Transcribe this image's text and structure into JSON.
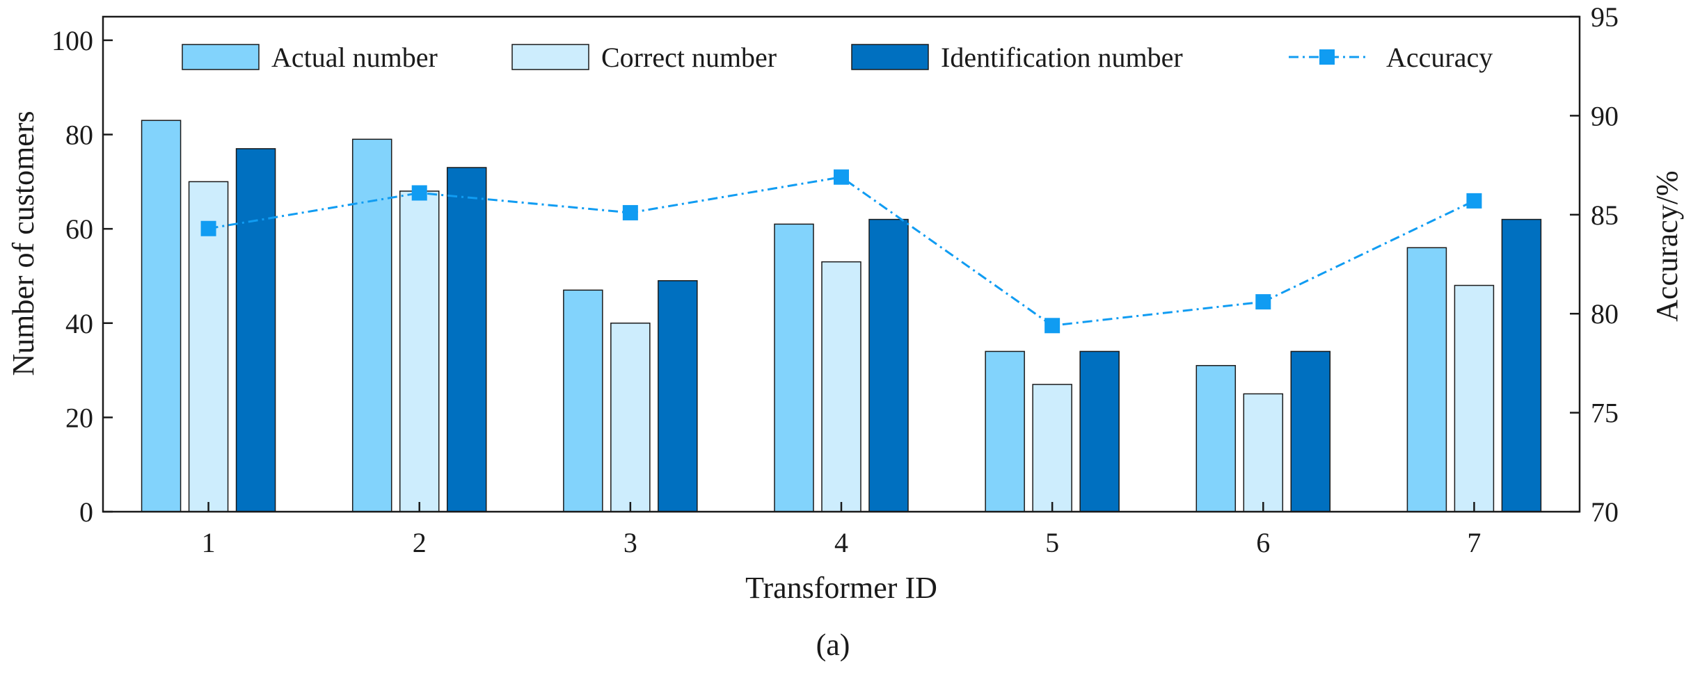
{
  "chart_data": {
    "type": "bar",
    "categories": [
      "1",
      "2",
      "3",
      "4",
      "5",
      "6",
      "7"
    ],
    "xlabel": "Transformer ID",
    "ylabel": "Number of customers",
    "y2label": "Accuracy/%",
    "ylim": [
      0,
      105
    ],
    "yticks": [
      0,
      20,
      40,
      60,
      80,
      100
    ],
    "y2lim": [
      70,
      95
    ],
    "y2ticks": [
      70,
      75,
      80,
      85,
      90,
      95
    ],
    "grid": false,
    "legend_position": "top",
    "series": [
      {
        "name": "Actual number",
        "kind": "bar",
        "axis": "left",
        "color": "#82D3FC",
        "values": [
          83,
          79,
          47,
          61,
          34,
          31,
          56
        ]
      },
      {
        "name": "Correct number",
        "kind": "bar",
        "axis": "left",
        "color": "#CDEDFD",
        "values": [
          70,
          68,
          40,
          53,
          27,
          25,
          48
        ]
      },
      {
        "name": "Identification number",
        "kind": "bar",
        "axis": "left",
        "color": "#0070C0",
        "values": [
          77,
          73,
          49,
          62,
          34,
          34,
          62
        ]
      },
      {
        "name": "Accuracy",
        "kind": "line",
        "axis": "right",
        "color": "#109CF2",
        "marker": "square",
        "line_style": "dash-dot",
        "values": [
          84.3,
          86.1,
          85.1,
          86.9,
          79.4,
          80.6,
          85.7
        ]
      }
    ],
    "panel_label": "(a)"
  }
}
